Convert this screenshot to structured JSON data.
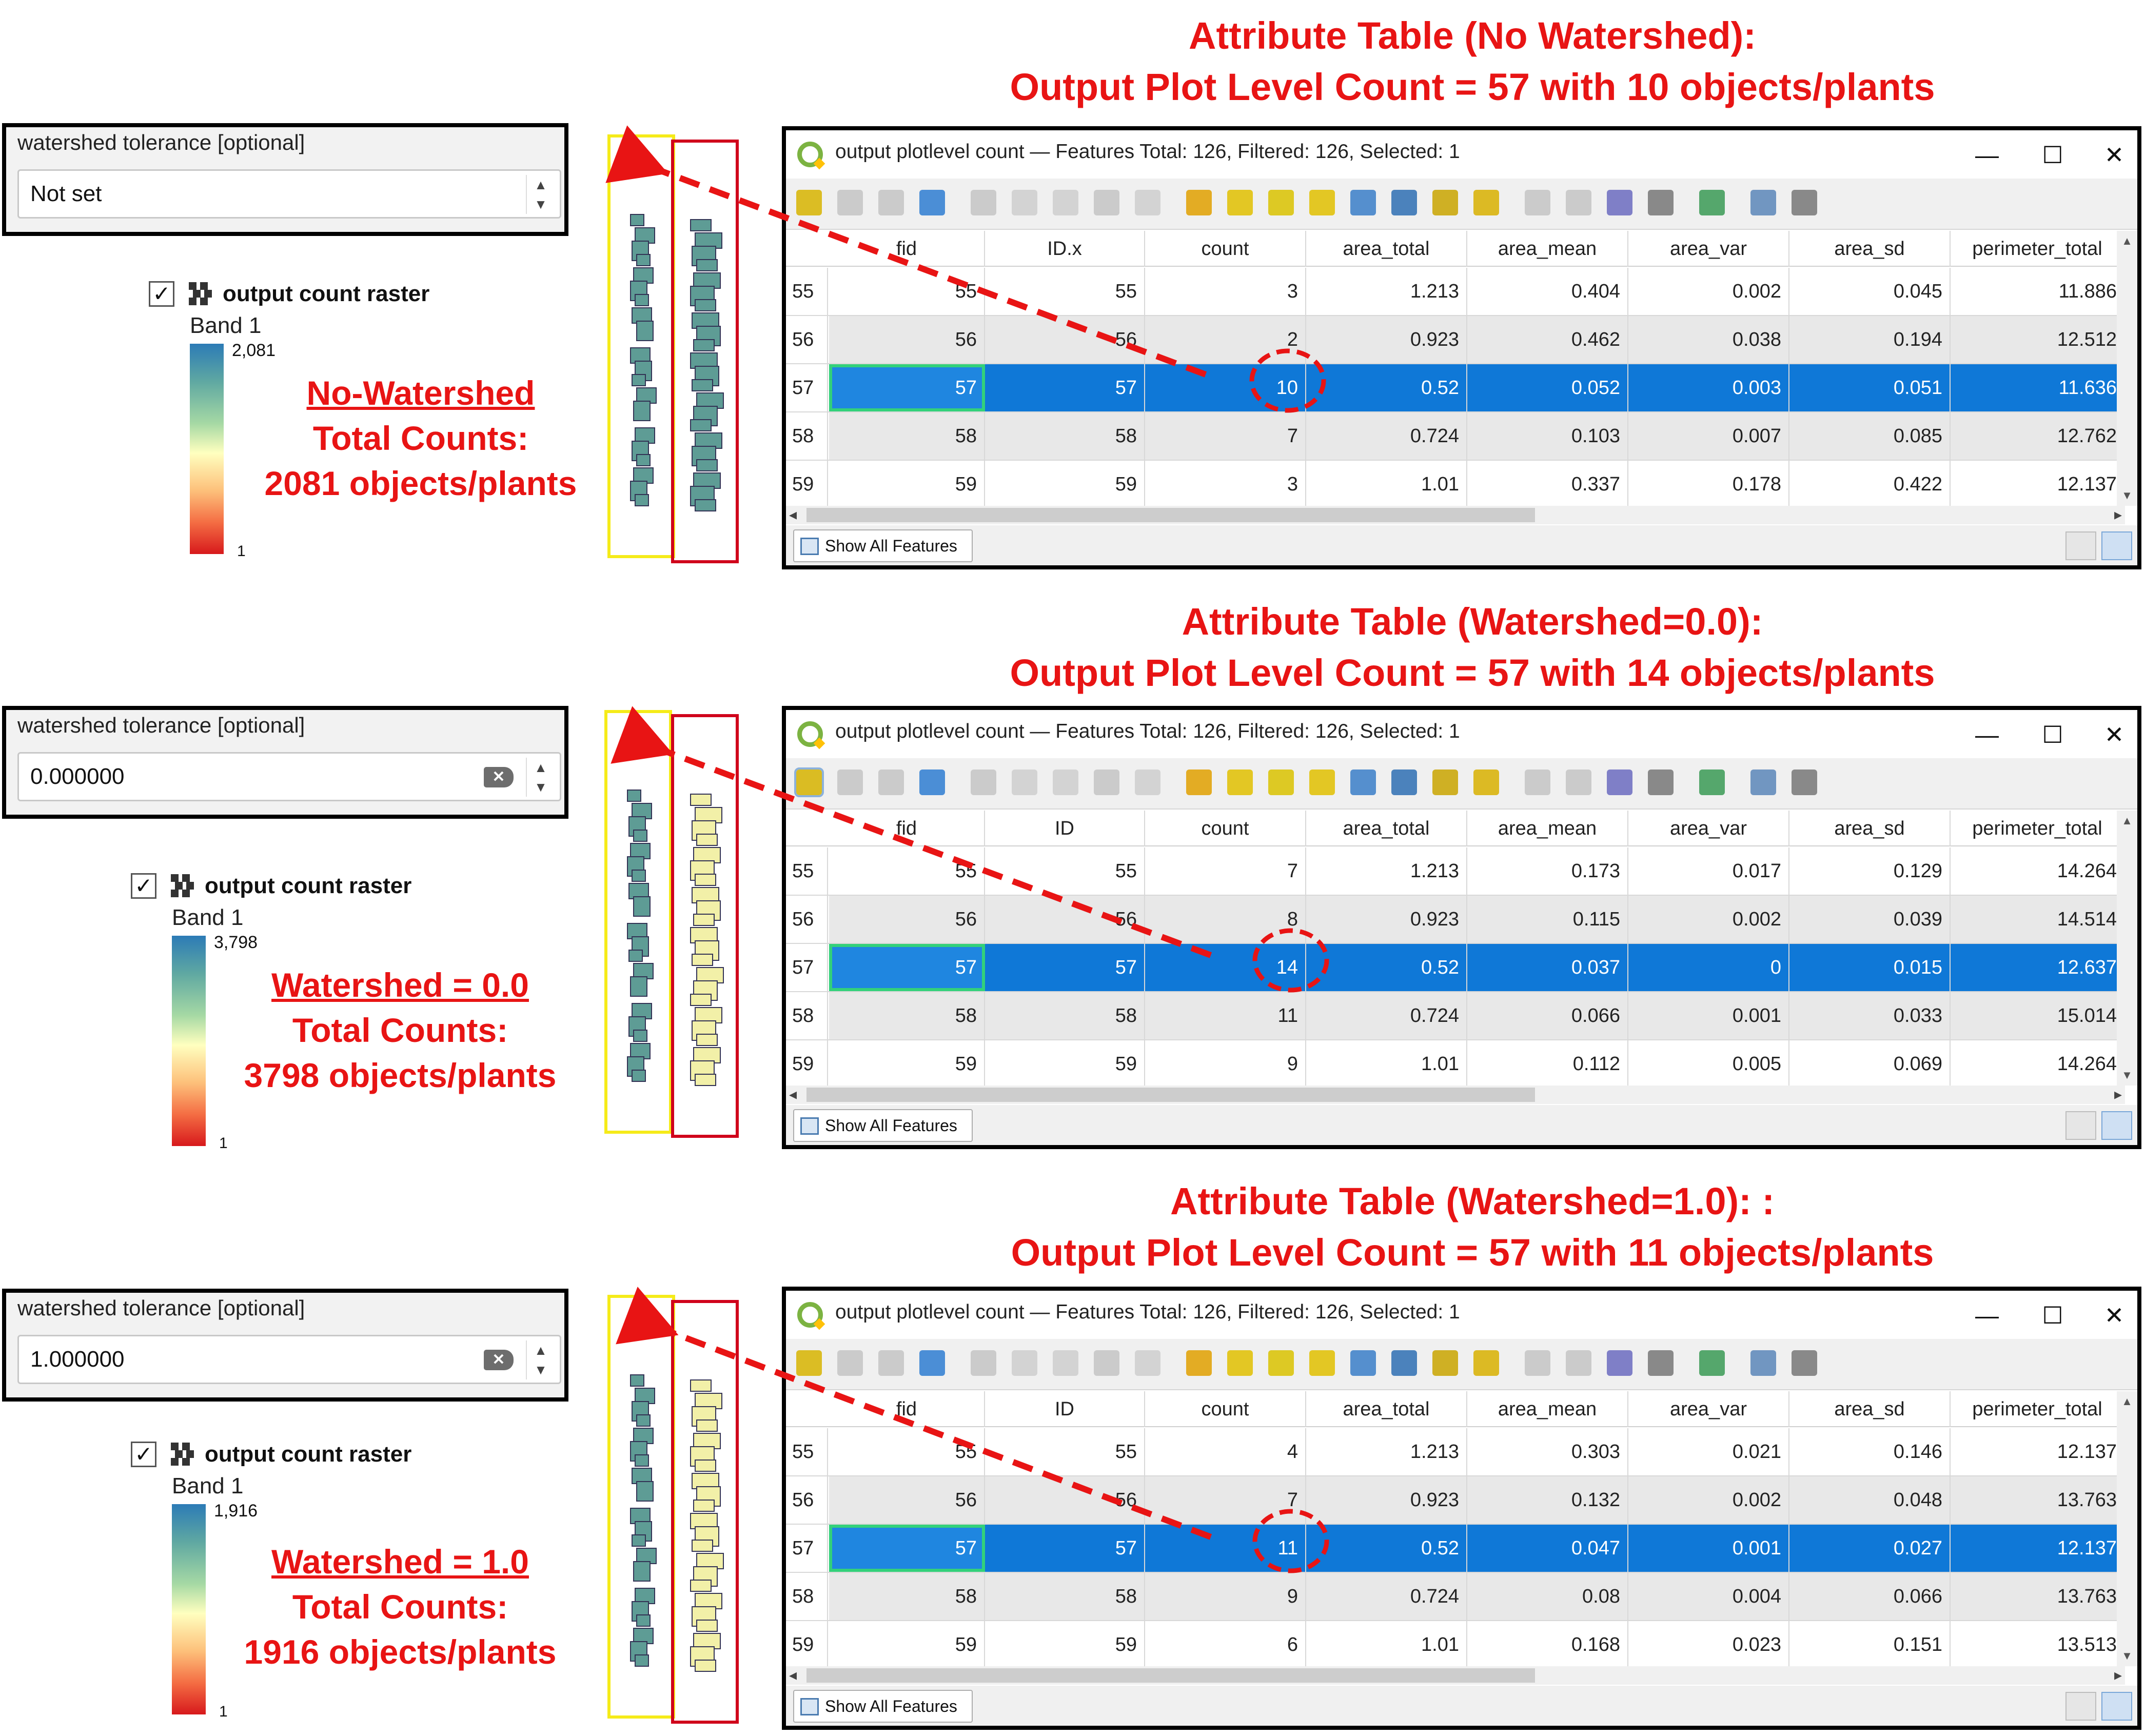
{
  "columns": [
    "fid",
    "ID.x",
    "count",
    "area_total",
    "area_mean",
    "area_var",
    "area_sd",
    "perimeter_total"
  ],
  "panels": [
    {
      "param": {
        "label": "watershed tolerance [optional]",
        "value": "Not set",
        "clearable": false
      },
      "legend": {
        "layer": "output count raster",
        "band": "Band 1",
        "max": "2,081",
        "min": "1",
        "checkbox": "✓"
      },
      "caption": [
        "No-Watershed",
        "Total Counts:",
        "2081 objects/plants"
      ],
      "heading": [
        "Attribute Table (No Watershed):",
        "Output Plot Level Count = 57 with 10 objects/plants"
      ],
      "window": {
        "title": "output plotlevel count — Features Total: 126, Filtered: 126, Selected: 1",
        "id_header": "ID.x",
        "show_all": "Show All Features"
      },
      "rows": [
        [
          "55",
          "55",
          "55",
          "3",
          "1.213",
          "0.404",
          "0.002",
          "0.045",
          "11.886"
        ],
        [
          "56",
          "56",
          "56",
          "2",
          "0.923",
          "0.462",
          "0.038",
          "0.194",
          "12.512"
        ],
        [
          "57",
          "57",
          "57",
          "10",
          "0.52",
          "0.052",
          "0.003",
          "0.051",
          "11.636"
        ],
        [
          "58",
          "58",
          "58",
          "7",
          "0.724",
          "0.103",
          "0.007",
          "0.085",
          "12.762"
        ],
        [
          "59",
          "59",
          "59",
          "3",
          "1.01",
          "0.337",
          "0.178",
          "0.422",
          "12.137"
        ]
      ]
    },
    {
      "param": {
        "label": "watershed tolerance [optional]",
        "value": "0.000000",
        "clearable": true
      },
      "legend": {
        "layer": "output count raster",
        "band": "Band 1",
        "max": "3,798",
        "min": "1",
        "checkbox": "✓"
      },
      "caption": [
        "Watershed = 0.0",
        "Total Counts:",
        "3798 objects/plants"
      ],
      "heading": [
        "Attribute Table (Watershed=0.0):",
        "Output Plot Level Count = 57 with 14 objects/plants"
      ],
      "window": {
        "title": "output plotlevel count — Features Total: 126, Filtered: 126, Selected: 1",
        "id_header": "ID",
        "show_all": "Show All Features"
      },
      "rows": [
        [
          "55",
          "55",
          "55",
          "7",
          "1.213",
          "0.173",
          "0.017",
          "0.129",
          "14.264"
        ],
        [
          "56",
          "56",
          "56",
          "8",
          "0.923",
          "0.115",
          "0.002",
          "0.039",
          "14.514"
        ],
        [
          "57",
          "57",
          "57",
          "14",
          "0.52",
          "0.037",
          "0",
          "0.015",
          "12.637"
        ],
        [
          "58",
          "58",
          "58",
          "11",
          "0.724",
          "0.066",
          "0.001",
          "0.033",
          "15.014"
        ],
        [
          "59",
          "59",
          "59",
          "9",
          "1.01",
          "0.112",
          "0.005",
          "0.069",
          "14.264"
        ]
      ]
    },
    {
      "param": {
        "label": "watershed tolerance [optional]",
        "value": "1.000000",
        "clearable": true
      },
      "legend": {
        "layer": "output count raster",
        "band": "Band 1",
        "max": "1,916",
        "min": "1",
        "checkbox": "✓"
      },
      "caption": [
        "Watershed = 1.0",
        "Total Counts:",
        "1916 objects/plants"
      ],
      "heading": [
        "Attribute Table (Watershed=1.0): :",
        "Output Plot Level Count = 57 with 11 objects/plants"
      ],
      "window": {
        "title": "output plotlevel count — Features Total: 126, Filtered: 126, Selected: 1",
        "id_header": "ID",
        "show_all": "Show All Features"
      },
      "rows": [
        [
          "55",
          "55",
          "55",
          "4",
          "1.213",
          "0.303",
          "0.021",
          "0.146",
          "12.137"
        ],
        [
          "56",
          "56",
          "56",
          "7",
          "0.923",
          "0.132",
          "0.002",
          "0.048",
          "13.763"
        ],
        [
          "57",
          "57",
          "57",
          "11",
          "0.52",
          "0.047",
          "0.001",
          "0.027",
          "12.137"
        ],
        [
          "58",
          "58",
          "58",
          "9",
          "0.724",
          "0.08",
          "0.004",
          "0.066",
          "13.763"
        ],
        [
          "59",
          "59",
          "59",
          "6",
          "1.01",
          "0.168",
          "0.023",
          "0.151",
          "13.513"
        ]
      ]
    }
  ],
  "colors": {
    "annotation": "#e81414",
    "selection": "#0f78d7",
    "yellow_frame": "#f5eb19",
    "red_frame": "#d0021b",
    "count_fill": "#5e9c95",
    "yellow_fill": "#f2f0a8"
  },
  "window_buttons": {
    "minimize": "—",
    "maximize": "☐",
    "close": "✕"
  }
}
